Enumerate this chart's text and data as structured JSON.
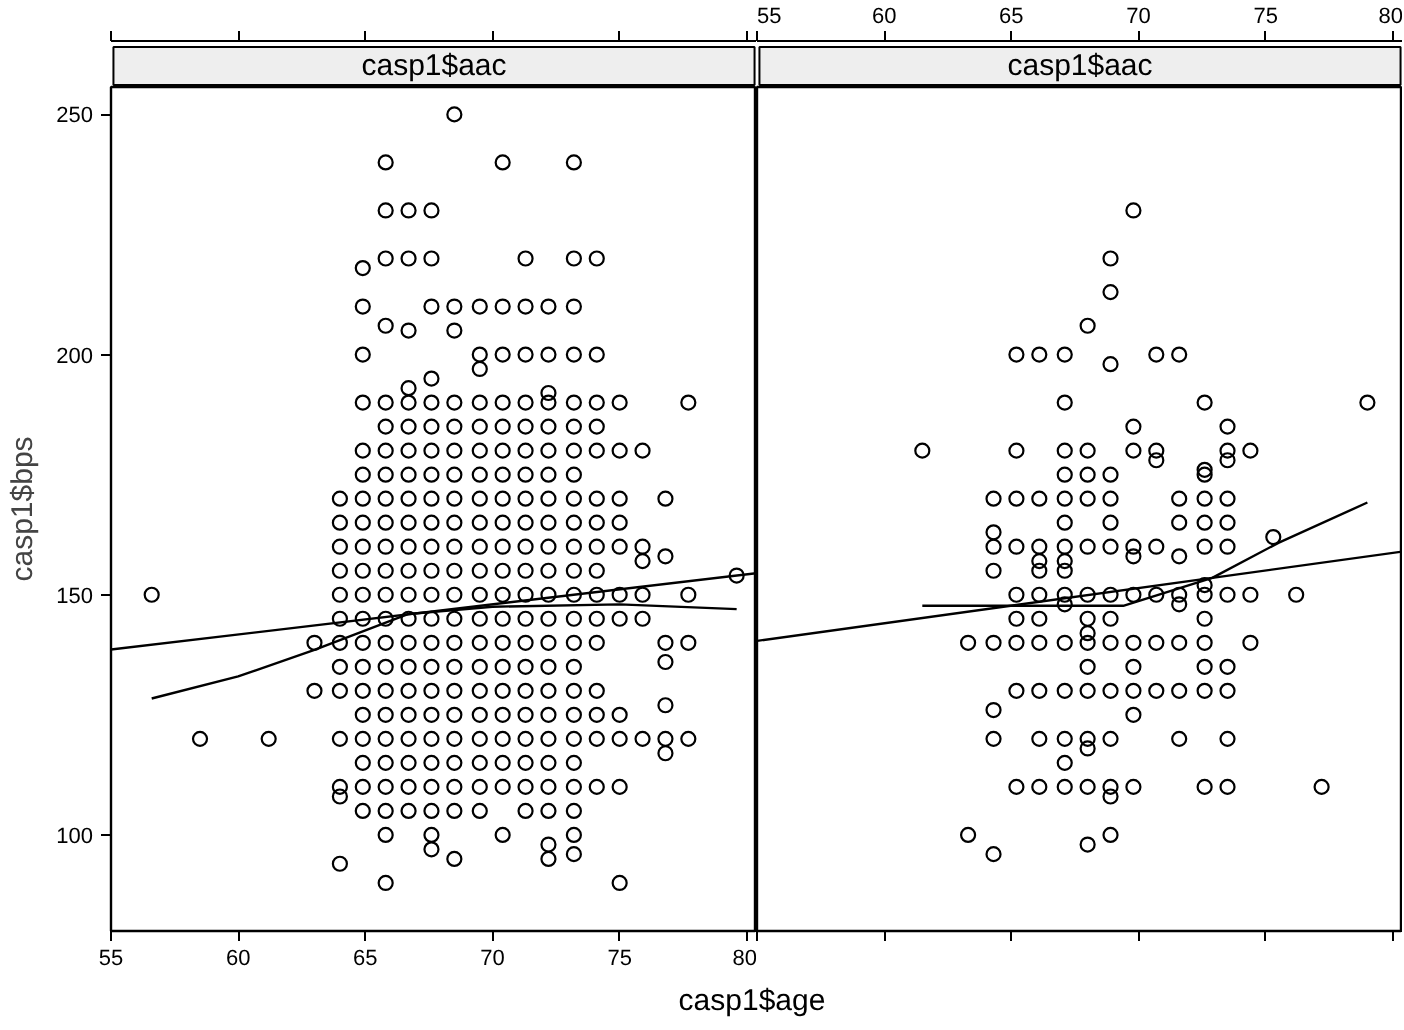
{
  "chart_data": [
    {
      "type": "scatter",
      "title": "casp1$aac",
      "xlabel": "casp1$age",
      "ylabel": "casp1$bps",
      "xlim": [
        55,
        80.4
      ],
      "ylim": [
        80,
        255.7
      ],
      "xticks": [
        55,
        60,
        65,
        70,
        75,
        80
      ],
      "yticks": [
        100,
        150,
        200,
        250
      ],
      "series": [
        {
          "marker": "circle",
          "color": "#000000",
          "x": [
            56.6,
            58.5,
            61.2,
            63.0,
            63.0,
            64.0,
            64.0,
            64.0,
            64.0,
            64.0,
            64.0,
            64.0,
            64.0,
            64.0,
            64.0,
            64.0,
            64.0,
            64.0,
            64.9,
            64.9,
            64.9,
            64.9,
            64.9,
            64.9,
            64.9,
            64.9,
            64.9,
            64.9,
            64.9,
            64.9,
            64.9,
            64.9,
            64.9,
            64.9,
            64.9,
            64.9,
            64.9,
            64.9,
            65.8,
            65.8,
            65.8,
            65.8,
            65.8,
            65.8,
            65.8,
            65.8,
            65.8,
            65.8,
            65.8,
            65.8,
            65.8,
            65.8,
            65.8,
            65.8,
            65.8,
            65.8,
            65.8,
            65.8,
            65.8,
            65.8,
            65.8,
            65.8,
            66.7,
            66.7,
            66.7,
            66.7,
            66.7,
            66.7,
            66.7,
            66.7,
            66.7,
            66.7,
            66.7,
            66.7,
            66.7,
            66.7,
            66.7,
            66.7,
            66.7,
            66.7,
            66.7,
            66.7,
            66.7,
            66.7,
            67.6,
            67.6,
            67.6,
            67.6,
            67.6,
            67.6,
            67.6,
            67.6,
            67.6,
            67.6,
            67.6,
            67.6,
            67.6,
            67.6,
            67.6,
            67.6,
            67.6,
            67.6,
            67.6,
            67.6,
            67.6,
            67.6,
            67.6,
            67.6,
            68.5,
            68.5,
            68.5,
            68.5,
            68.5,
            68.5,
            68.5,
            68.5,
            68.5,
            68.5,
            68.5,
            68.5,
            68.5,
            68.5,
            68.5,
            68.5,
            68.5,
            68.5,
            68.5,
            68.5,
            68.5,
            68.5,
            69.5,
            69.5,
            69.5,
            69.5,
            69.5,
            69.5,
            69.5,
            69.5,
            69.5,
            69.5,
            69.5,
            69.5,
            69.5,
            69.5,
            69.5,
            69.5,
            69.5,
            69.5,
            69.5,
            69.5,
            69.5,
            70.4,
            70.4,
            70.4,
            70.4,
            70.4,
            70.4,
            70.4,
            70.4,
            70.4,
            70.4,
            70.4,
            70.4,
            70.4,
            70.4,
            70.4,
            70.4,
            70.4,
            70.4,
            70.4,
            70.4,
            70.4,
            71.3,
            71.3,
            71.3,
            71.3,
            71.3,
            71.3,
            71.3,
            71.3,
            71.3,
            71.3,
            71.3,
            71.3,
            71.3,
            71.3,
            71.3,
            71.3,
            71.3,
            71.3,
            71.3,
            71.3,
            71.3,
            72.2,
            72.2,
            72.2,
            72.2,
            72.2,
            72.2,
            72.2,
            72.2,
            72.2,
            72.2,
            72.2,
            72.2,
            72.2,
            72.2,
            72.2,
            72.2,
            72.2,
            72.2,
            72.2,
            72.2,
            72.2,
            72.2,
            72.2,
            73.2,
            73.2,
            73.2,
            73.2,
            73.2,
            73.2,
            73.2,
            73.2,
            73.2,
            73.2,
            73.2,
            73.2,
            73.2,
            73.2,
            73.2,
            73.2,
            73.2,
            73.2,
            73.2,
            73.2,
            73.2,
            73.2,
            73.2,
            73.2,
            74.1,
            74.1,
            74.1,
            74.1,
            74.1,
            74.1,
            74.1,
            74.1,
            74.1,
            74.1,
            74.1,
            74.1,
            74.1,
            74.1,
            74.1,
            74.1,
            75.0,
            75.0,
            75.0,
            75.0,
            75.0,
            75.0,
            75.0,
            75.0,
            75.0,
            75.0,
            75.0,
            75.9,
            75.9,
            75.9,
            75.9,
            75.9,
            75.9,
            76.8,
            76.8,
            76.8,
            76.8,
            76.8,
            76.8,
            76.8,
            77.7,
            77.7,
            77.7,
            77.7,
            79.6
          ],
          "values": [
            150,
            120,
            120,
            140,
            130,
            170,
            165,
            160,
            155,
            150,
            145,
            140,
            135,
            130,
            120,
            110,
            108,
            94,
            218,
            210,
            200,
            190,
            180,
            175,
            170,
            165,
            160,
            155,
            150,
            145,
            140,
            135,
            130,
            125,
            120,
            115,
            110,
            105,
            240,
            230,
            220,
            206,
            190,
            185,
            180,
            175,
            170,
            165,
            160,
            155,
            150,
            145,
            140,
            135,
            130,
            125,
            120,
            115,
            110,
            105,
            100,
            90,
            230,
            220,
            205,
            193,
            190,
            185,
            180,
            175,
            170,
            165,
            160,
            155,
            150,
            145,
            140,
            135,
            130,
            125,
            120,
            115,
            110,
            105,
            230,
            220,
            210,
            195,
            190,
            185,
            180,
            175,
            170,
            165,
            160,
            155,
            150,
            145,
            140,
            135,
            130,
            125,
            120,
            115,
            110,
            105,
            100,
            97,
            250,
            210,
            205,
            190,
            185,
            180,
            175,
            170,
            165,
            160,
            155,
            150,
            145,
            140,
            135,
            130,
            125,
            120,
            115,
            110,
            105,
            95,
            210,
            200,
            197,
            190,
            185,
            180,
            175,
            170,
            165,
            160,
            155,
            150,
            145,
            140,
            135,
            130,
            125,
            120,
            115,
            110,
            105,
            240,
            210,
            200,
            190,
            185,
            180,
            175,
            170,
            165,
            160,
            155,
            150,
            145,
            140,
            135,
            130,
            125,
            120,
            115,
            110,
            100,
            220,
            210,
            200,
            190,
            185,
            180,
            175,
            170,
            165,
            160,
            155,
            150,
            145,
            140,
            135,
            130,
            125,
            120,
            115,
            110,
            105,
            210,
            200,
            192,
            190,
            185,
            180,
            175,
            170,
            165,
            160,
            155,
            150,
            145,
            140,
            135,
            130,
            125,
            120,
            115,
            110,
            105,
            98,
            95,
            240,
            220,
            210,
            200,
            190,
            185,
            180,
            175,
            170,
            165,
            160,
            155,
            150,
            145,
            140,
            135,
            130,
            125,
            120,
            115,
            110,
            105,
            100,
            96,
            220,
            200,
            190,
            185,
            180,
            170,
            165,
            160,
            155,
            150,
            145,
            140,
            130,
            125,
            120,
            110,
            190,
            180,
            170,
            165,
            160,
            150,
            145,
            125,
            120,
            110,
            90,
            180,
            160,
            157,
            150,
            145,
            120,
            170,
            158,
            140,
            136,
            127,
            120,
            117,
            190,
            150,
            140,
            120,
            154
          ]
        },
        {
          "type": "line",
          "color": "#000000",
          "x": [
            55,
            80.4
          ],
          "values": [
            138.6,
            154.5
          ]
        },
        {
          "type": "line",
          "color": "#000000",
          "x": [
            56.6,
            60,
            63,
            66.7,
            70,
            75,
            79.6
          ],
          "values": [
            128.4,
            133,
            138.5,
            146,
            147.5,
            148,
            147
          ]
        }
      ]
    },
    {
      "type": "scatter",
      "title": "casp1$aac",
      "xlim": [
        55,
        80.4
      ],
      "ylim": [
        80,
        255.7
      ],
      "xticks": [
        55,
        60,
        65,
        70,
        75,
        80
      ],
      "yticks": [
        100,
        150,
        200,
        250
      ],
      "tick_labels": "x",
      "series": [
        {
          "marker": "circle",
          "color": "#000000",
          "x": [
            61.5,
            63.3,
            63.3,
            64.3,
            64.3,
            64.3,
            64.3,
            64.3,
            64.3,
            64.3,
            64.3,
            65.2,
            65.2,
            65.2,
            65.2,
            65.2,
            65.2,
            65.2,
            65.2,
            65.2,
            66.1,
            66.1,
            66.1,
            66.1,
            66.1,
            66.1,
            66.1,
            66.1,
            66.1,
            66.1,
            66.1,
            67.1,
            67.1,
            67.1,
            67.1,
            67.1,
            67.1,
            67.1,
            67.1,
            67.1,
            67.1,
            67.1,
            67.1,
            67.1,
            67.1,
            67.1,
            67.1,
            68.0,
            68.0,
            68.0,
            68.0,
            68.0,
            68.0,
            68.0,
            68.0,
            68.0,
            68.0,
            68.0,
            68.0,
            68.0,
            68.0,
            68.0,
            68.9,
            68.9,
            68.9,
            68.9,
            68.9,
            68.9,
            68.9,
            68.9,
            68.9,
            68.9,
            68.9,
            68.9,
            68.9,
            68.9,
            68.9,
            69.8,
            69.8,
            69.8,
            69.8,
            69.8,
            69.8,
            69.8,
            69.8,
            69.8,
            69.8,
            69.8,
            70.7,
            70.7,
            70.7,
            70.7,
            70.7,
            70.7,
            70.7,
            71.6,
            71.6,
            71.6,
            71.6,
            71.6,
            71.6,
            71.6,
            71.6,
            71.6,
            72.6,
            72.6,
            72.6,
            72.6,
            72.6,
            72.6,
            72.6,
            72.6,
            72.6,
            72.6,
            72.6,
            72.6,
            72.6,
            73.5,
            73.5,
            73.5,
            73.5,
            73.5,
            73.5,
            73.5,
            73.5,
            73.5,
            73.5,
            73.5,
            74.4,
            74.4,
            74.4,
            75.3,
            76.2,
            77.2,
            79.0
          ],
          "values": [
            180,
            140,
            100,
            170,
            163,
            160,
            155,
            140,
            126,
            120,
            96,
            200,
            180,
            170,
            160,
            150,
            145,
            140,
            130,
            110,
            200,
            170,
            160,
            157,
            155,
            150,
            145,
            140,
            130,
            120,
            110,
            200,
            190,
            180,
            175,
            170,
            165,
            160,
            157,
            155,
            150,
            148,
            140,
            130,
            120,
            115,
            110,
            206,
            180,
            175,
            170,
            160,
            150,
            145,
            142,
            140,
            135,
            130,
            120,
            118,
            110,
            98,
            220,
            213,
            198,
            175,
            170,
            165,
            160,
            150,
            145,
            140,
            130,
            120,
            110,
            108,
            100,
            230,
            185,
            180,
            160,
            158,
            150,
            140,
            135,
            130,
            125,
            110,
            200,
            180,
            178,
            160,
            150,
            140,
            130,
            200,
            170,
            165,
            158,
            150,
            148,
            140,
            130,
            120,
            190,
            176,
            175,
            170,
            165,
            160,
            152,
            150,
            145,
            140,
            135,
            130,
            110,
            185,
            180,
            178,
            170,
            165,
            160,
            150,
            135,
            130,
            120,
            110,
            180,
            150,
            140,
            162,
            150,
            110,
            190
          ]
        },
        {
          "type": "line",
          "color": "#000000",
          "x": [
            55,
            80.4
          ],
          "values": [
            140.4,
            159
          ]
        },
        {
          "type": "line",
          "color": "#000000",
          "x": [
            61.5,
            69.4,
            72.9,
            75.5,
            79.0
          ],
          "values": [
            147.7,
            147.7,
            153.5,
            160.8,
            169.2
          ]
        }
      ]
    }
  ]
}
